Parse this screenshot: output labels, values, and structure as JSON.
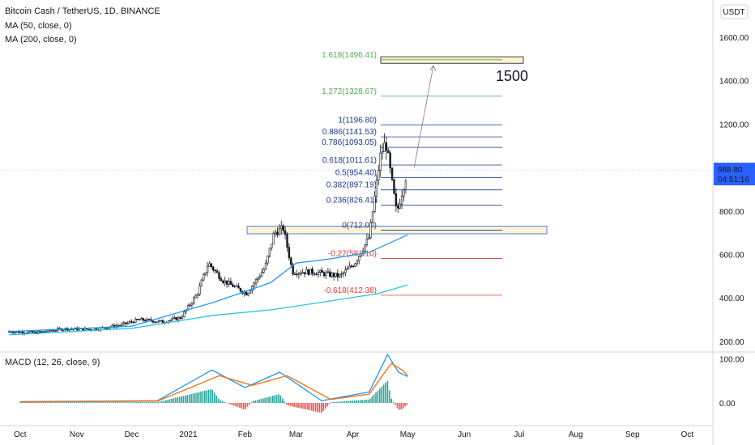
{
  "header": {
    "symbol_line": "Bitcoin Cash / TetherUS, 1D, BINANCE",
    "ma50_label": "MA (50, close, 0)",
    "ma200_label": "MA (200, close, 0)"
  },
  "macd": {
    "label": "MACD (12, 26, close, 9)",
    "yticks": [
      "100.00",
      "0.00"
    ],
    "colors": {
      "macd": "#2196f3",
      "signal": "#ff6d00",
      "hist_up": "#26a69a",
      "hist_down": "#ef5350"
    }
  },
  "price_axis": {
    "currency": "USDT",
    "ticks": [
      "1600.00",
      "1400.00",
      "1200.00",
      "1000.00",
      "800.00",
      "600.00",
      "400.00",
      "200.00"
    ],
    "last_price": "988.80",
    "countdown": "04:51:16"
  },
  "time_axis": {
    "labels": [
      "Oct",
      "Nov",
      "Dec",
      "2021",
      "Feb",
      "Mar",
      "Apr",
      "May",
      "Jun",
      "Jul",
      "Aug",
      "Sep",
      "Oct"
    ]
  },
  "annotations": {
    "target_label": "1500"
  },
  "chart_data": {
    "type": "candlestick",
    "title": "Bitcoin Cash / TetherUS, 1D, BINANCE",
    "ylim": [
      170,
      1680
    ],
    "price_ticks": [
      1600,
      1400,
      1200,
      1000,
      800,
      600,
      400,
      200
    ],
    "last_price": 988.8,
    "fib_levels": [
      {
        "ratio": 1.618,
        "price": 1496.41,
        "label": "1.618(1496.41)",
        "color": "#4caf50"
      },
      {
        "ratio": 1.272,
        "price": 1328.67,
        "label": "1.272(1328.67)",
        "color": "#4caf50"
      },
      {
        "ratio": 1,
        "price": 1196.8,
        "label": "1(1196.80)",
        "color": "#1e3a8a"
      },
      {
        "ratio": 0.886,
        "price": 1141.53,
        "label": "0.886(1141.53)",
        "color": "#1e3a8a"
      },
      {
        "ratio": 0.786,
        "price": 1093.05,
        "label": "0.786(1093.05)",
        "color": "#1e3a8a"
      },
      {
        "ratio": 0.618,
        "price": 1011.61,
        "label": "0.618(1011.61)",
        "color": "#1e3a8a"
      },
      {
        "ratio": 0.5,
        "price": 954.4,
        "label": "0.5(954.40)",
        "color": "#1e3a8a"
      },
      {
        "ratio": 0.382,
        "price": 897.19,
        "label": "0.382(897.19)",
        "color": "#1e3a8a"
      },
      {
        "ratio": 0.236,
        "price": 826.41,
        "label": "0.236(826.41)",
        "color": "#1e3a8a"
      },
      {
        "ratio": 0,
        "price": 712.0,
        "label": "0(712.00)",
        "color": "#1e3a8a"
      },
      {
        "ratio": -0.27,
        "price": 581.1,
        "label": "-0.27(581.10)",
        "color": "#e53935"
      },
      {
        "ratio": -0.618,
        "price": 412.38,
        "label": "-0.618(412.38)",
        "color": "#e53935"
      }
    ],
    "zones": [
      {
        "name": "support-zone",
        "low": 695,
        "high": 730
      },
      {
        "name": "target-zone",
        "low": 1480,
        "high": 1510
      }
    ],
    "price_path": [
      [
        "2020-09-25",
        245
      ],
      [
        "2020-10-10",
        240
      ],
      [
        "2020-10-25",
        258
      ],
      [
        "2020-11-10",
        255
      ],
      [
        "2020-11-25",
        275
      ],
      [
        "2020-12-05",
        300
      ],
      [
        "2020-12-18",
        290
      ],
      [
        "2020-12-28",
        310
      ],
      [
        "2021-01-06",
        420
      ],
      [
        "2021-01-12",
        560
      ],
      [
        "2021-01-20",
        480
      ],
      [
        "2021-02-02",
        420
      ],
      [
        "2021-02-12",
        540
      ],
      [
        "2021-02-17",
        700
      ],
      [
        "2021-02-22",
        720
      ],
      [
        "2021-02-27",
        520
      ],
      [
        "2021-03-10",
        520
      ],
      [
        "2021-03-25",
        500
      ],
      [
        "2021-04-02",
        560
      ],
      [
        "2021-04-10",
        680
      ],
      [
        "2021-04-16",
        1050
      ],
      [
        "2021-04-19",
        1120
      ],
      [
        "2021-04-25",
        790
      ],
      [
        "2021-05-01",
        988.8
      ]
    ],
    "ma50_path": [
      [
        "2020-09-25",
        245
      ],
      [
        "2020-12-01",
        270
      ],
      [
        "2021-01-15",
        380
      ],
      [
        "2021-02-15",
        470
      ],
      [
        "2021-03-01",
        560
      ],
      [
        "2021-03-20",
        580
      ],
      [
        "2021-04-10",
        610
      ],
      [
        "2021-05-01",
        690
      ]
    ],
    "ma200_path": [
      [
        "2020-09-25",
        230
      ],
      [
        "2020-12-01",
        260
      ],
      [
        "2021-01-15",
        320
      ],
      [
        "2021-02-15",
        345
      ],
      [
        "2021-03-15",
        380
      ],
      [
        "2021-04-15",
        420
      ],
      [
        "2021-05-01",
        460
      ]
    ],
    "macd_path": [
      [
        "2020-10-01",
        3
      ],
      [
        "2020-12-15",
        5
      ],
      [
        "2021-01-14",
        75
      ],
      [
        "2021-02-01",
        35
      ],
      [
        "2021-02-20",
        70
      ],
      [
        "2021-03-15",
        5
      ],
      [
        "2021-04-10",
        25
      ],
      [
        "2021-04-20",
        110
      ],
      [
        "2021-04-26",
        70
      ],
      [
        "2021-05-01",
        60
      ]
    ],
    "signal_path": [
      [
        "2020-10-01",
        2
      ],
      [
        "2020-12-15",
        4
      ],
      [
        "2021-01-18",
        62
      ],
      [
        "2021-02-05",
        40
      ],
      [
        "2021-02-24",
        62
      ],
      [
        "2021-03-20",
        8
      ],
      [
        "2021-04-10",
        20
      ],
      [
        "2021-04-22",
        90
      ],
      [
        "2021-04-28",
        75
      ],
      [
        "2021-05-01",
        62
      ]
    ],
    "time_range": [
      "2020-09-20",
      "2021-10-15"
    ],
    "xlabel": "",
    "ylabel": ""
  }
}
